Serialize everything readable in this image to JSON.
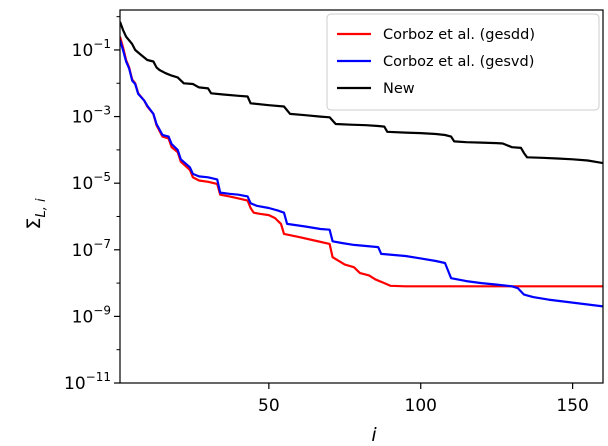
{
  "chart_data": {
    "type": "line",
    "title": "",
    "xlabel": "i",
    "ylabel_main": "Σ",
    "ylabel_sub": "L, i",
    "xlim": [
      1,
      160
    ],
    "ylim_log10": [
      -11,
      0.2
    ],
    "yscale": "log",
    "grid": false,
    "legend_position": "top-right",
    "x_ticks": [
      {
        "value": 50,
        "label": "50"
      },
      {
        "value": 100,
        "label": "100"
      },
      {
        "value": 150,
        "label": "150"
      }
    ],
    "y_ticks": [
      {
        "exp": -1,
        "base": "10",
        "power": "−1"
      },
      {
        "exp": -3,
        "base": "10",
        "power": "−3"
      },
      {
        "exp": -5,
        "base": "10",
        "power": "−5"
      },
      {
        "exp": -7,
        "base": "10",
        "power": "−7"
      },
      {
        "exp": -9,
        "base": "10",
        "power": "−9"
      },
      {
        "exp": -11,
        "base": "10",
        "power": "−11"
      }
    ],
    "series": [
      {
        "name": "Corboz et al. (gesdd)",
        "color": "#ff0000",
        "points": [
          [
            1,
            0.25
          ],
          [
            2,
            0.12
          ],
          [
            3,
            0.05
          ],
          [
            4,
            0.03
          ],
          [
            5,
            0.013
          ],
          [
            6,
            0.01
          ],
          [
            7,
            0.005
          ],
          [
            9,
            0.003
          ],
          [
            10,
            0.002
          ],
          [
            12,
            0.0012
          ],
          [
            13,
            0.00055
          ],
          [
            15,
            0.00025
          ],
          [
            17,
            0.00022
          ],
          [
            18,
            0.00012
          ],
          [
            20,
            8.5e-05
          ],
          [
            21,
            4.4e-05
          ],
          [
            24,
            2.5e-05
          ],
          [
            25,
            1.5e-05
          ],
          [
            27,
            1.2e-05
          ],
          [
            30,
            1.1e-05
          ],
          [
            33,
            9.5e-06
          ],
          [
            34,
            4.5e-06
          ],
          [
            37,
            4e-06
          ],
          [
            40,
            3.5e-06
          ],
          [
            43,
            3e-06
          ],
          [
            44,
            1.8e-06
          ],
          [
            45,
            1.3e-06
          ],
          [
            47,
            1.2e-06
          ],
          [
            50,
            1.1e-06
          ],
          [
            52,
            9e-07
          ],
          [
            54,
            6e-07
          ],
          [
            55,
            3e-07
          ],
          [
            60,
            2.4e-07
          ],
          [
            65,
            1.9e-07
          ],
          [
            70,
            1.5e-07
          ],
          [
            71,
            6e-08
          ],
          [
            75,
            3.6e-08
          ],
          [
            78,
            3e-08
          ],
          [
            80,
            2e-08
          ],
          [
            83,
            1.7e-08
          ],
          [
            85,
            1.3e-08
          ],
          [
            88,
            1e-08
          ],
          [
            90,
            8.3e-09
          ],
          [
            95,
            8e-09
          ],
          [
            160,
            8e-09
          ]
        ]
      },
      {
        "name": "Corboz et al. (gesvd)",
        "color": "#0000ff",
        "points": [
          [
            1,
            0.2
          ],
          [
            2,
            0.1
          ],
          [
            3,
            0.045
          ],
          [
            4,
            0.028
          ],
          [
            5,
            0.012
          ],
          [
            6,
            0.0095
          ],
          [
            7,
            0.0048
          ],
          [
            9,
            0.003
          ],
          [
            10,
            0.0021
          ],
          [
            12,
            0.0012
          ],
          [
            13,
            0.0006
          ],
          [
            15,
            0.00028
          ],
          [
            17,
            0.00025
          ],
          [
            18,
            0.00015
          ],
          [
            20,
            0.0001
          ],
          [
            21,
            5.2e-05
          ],
          [
            24,
            3e-05
          ],
          [
            25,
            1.9e-05
          ],
          [
            27,
            1.6e-05
          ],
          [
            30,
            1.5e-05
          ],
          [
            33,
            1.3e-05
          ],
          [
            34,
            5.2e-06
          ],
          [
            37,
            4.8e-06
          ],
          [
            40,
            4.5e-06
          ],
          [
            43,
            4e-06
          ],
          [
            44,
            2.5e-06
          ],
          [
            46,
            2.1e-06
          ],
          [
            50,
            1.8e-06
          ],
          [
            53,
            1.5e-06
          ],
          [
            55,
            1.3e-06
          ],
          [
            56,
            6e-07
          ],
          [
            62,
            5e-07
          ],
          [
            67,
            4.2e-07
          ],
          [
            70,
            4e-07
          ],
          [
            71,
            1.8e-07
          ],
          [
            74,
            1.6e-07
          ],
          [
            78,
            1.4e-07
          ],
          [
            82,
            1.3e-07
          ],
          [
            86,
            1.2e-07
          ],
          [
            87,
            7.5e-08
          ],
          [
            95,
            6.5e-08
          ],
          [
            100,
            5.5e-08
          ],
          [
            105,
            4.6e-08
          ],
          [
            108,
            4e-08
          ],
          [
            110,
            1.4e-08
          ],
          [
            115,
            1.15e-08
          ],
          [
            120,
            1e-08
          ],
          [
            125,
            9e-09
          ],
          [
            130,
            8e-09
          ],
          [
            132,
            7e-09
          ],
          [
            134,
            4.5e-09
          ],
          [
            137,
            3.8e-09
          ],
          [
            142,
            3.2e-09
          ],
          [
            150,
            2.6e-09
          ],
          [
            160,
            2e-09
          ]
        ]
      },
      {
        "name": "New",
        "color": "#000000",
        "points": [
          [
            1,
            0.7
          ],
          [
            2,
            0.4
          ],
          [
            3,
            0.25
          ],
          [
            5,
            0.15
          ],
          [
            6,
            0.1
          ],
          [
            8,
            0.07
          ],
          [
            10,
            0.05
          ],
          [
            12,
            0.045
          ],
          [
            13,
            0.03
          ],
          [
            14,
            0.025
          ],
          [
            16,
            0.02
          ],
          [
            18,
            0.017
          ],
          [
            20,
            0.015
          ],
          [
            22,
            0.01
          ],
          [
            25,
            0.0095
          ],
          [
            27,
            0.0075
          ],
          [
            30,
            0.007
          ],
          [
            31,
            0.005
          ],
          [
            35,
            0.0046
          ],
          [
            40,
            0.0042
          ],
          [
            43,
            0.004
          ],
          [
            44,
            0.0025
          ],
          [
            50,
            0.0022
          ],
          [
            55,
            0.002
          ],
          [
            57,
            0.0012
          ],
          [
            62,
            0.0011
          ],
          [
            67,
            0.001
          ],
          [
            70,
            0.00095
          ],
          [
            72,
            0.0006
          ],
          [
            77,
            0.00057
          ],
          [
            82,
            0.00055
          ],
          [
            86,
            0.00052
          ],
          [
            88,
            0.0005
          ],
          [
            89,
            0.00035
          ],
          [
            95,
            0.00033
          ],
          [
            100,
            0.00032
          ],
          [
            105,
            0.0003
          ],
          [
            108,
            0.00028
          ],
          [
            110,
            0.00025
          ],
          [
            111,
            0.00018
          ],
          [
            115,
            0.00017
          ],
          [
            120,
            0.000165
          ],
          [
            125,
            0.00016
          ],
          [
            127,
            0.000155
          ],
          [
            130,
            0.00012
          ],
          [
            133,
            0.000115
          ],
          [
            134,
            8e-05
          ],
          [
            135,
            6e-05
          ],
          [
            140,
            5.8e-05
          ],
          [
            145,
            5.5e-05
          ],
          [
            150,
            5.2e-05
          ],
          [
            155,
            4.8e-05
          ],
          [
            160,
            4e-05
          ]
        ]
      }
    ]
  }
}
